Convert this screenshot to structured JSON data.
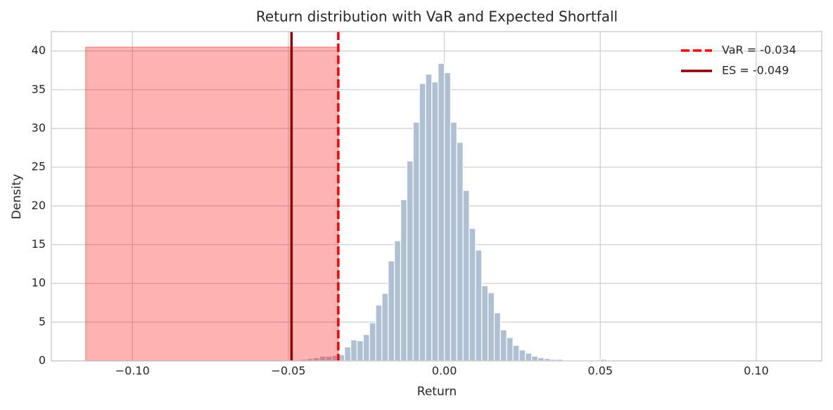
{
  "chart_data": {
    "type": "histogram",
    "title": "Return distribution with VaR and Expected Shortfall",
    "x_label": "Return",
    "y_label": "Density",
    "bins": [
      -0.05,
      -0.048,
      -0.046,
      -0.044,
      -0.042,
      -0.04,
      -0.038,
      -0.036,
      -0.034,
      -0.032,
      -0.03,
      -0.028,
      -0.026,
      -0.024,
      -0.022,
      -0.02,
      -0.018,
      -0.016,
      -0.014,
      -0.012,
      -0.01,
      -0.008,
      -0.006,
      -0.004,
      -0.002,
      0.0,
      0.002,
      0.004,
      0.006,
      0.008,
      0.01,
      0.012,
      0.014,
      0.016,
      0.018,
      0.02,
      0.022,
      0.024,
      0.026,
      0.028,
      0.03,
      0.032,
      0.034,
      0.036,
      0.038,
      0.04,
      0.042,
      0.044,
      0.046,
      0.048,
      0.05,
      0.052,
      0.054
    ],
    "values": [
      0.1,
      0.1,
      0.2,
      0.3,
      0.4,
      0.6,
      0.6,
      0.7,
      0.8,
      1.8,
      2.7,
      2.6,
      3.4,
      4.9,
      7.2,
      8.7,
      12.9,
      15.5,
      20.8,
      25.8,
      30.8,
      35.8,
      37.0,
      36.0,
      38.4,
      37.2,
      30.8,
      28.2,
      22.0,
      17.1,
      14.3,
      9.7,
      8.8,
      6.2,
      4.0,
      3.0,
      2.0,
      1.4,
      1.0,
      0.6,
      0.4,
      0.3,
      0.2,
      0.2,
      0.1,
      0.1,
      0.1,
      0.1,
      0.1,
      0.1,
      0.2,
      0.05
    ],
    "color": "#b0c0d4",
    "shade": {
      "x": [
        -0.115,
        -0.034
      ],
      "height": 40.5,
      "color": "#ff0000"
    },
    "lines": [
      {
        "name": "VaR = -0.034",
        "x": -0.034,
        "color": "#ff0000",
        "style": "dashed"
      },
      {
        "name": "ES = -0.049",
        "x": -0.049,
        "color": "#8b0000",
        "style": "solid"
      }
    ],
    "xlim": [
      -0.126,
      0.121
    ],
    "ylim": [
      0,
      42.5
    ],
    "xticks": [
      {
        "value": -0.1,
        "label": "−0.10"
      },
      {
        "value": -0.05,
        "label": "−0.05"
      },
      {
        "value": 0,
        "label": "0.00"
      },
      {
        "value": 0.05,
        "label": "0.05"
      },
      {
        "value": 0.1,
        "label": "0.10"
      }
    ],
    "yticks": [
      0,
      5,
      10,
      15,
      20,
      25,
      30,
      35,
      40
    ],
    "grid": true,
    "legend": "upper right"
  }
}
